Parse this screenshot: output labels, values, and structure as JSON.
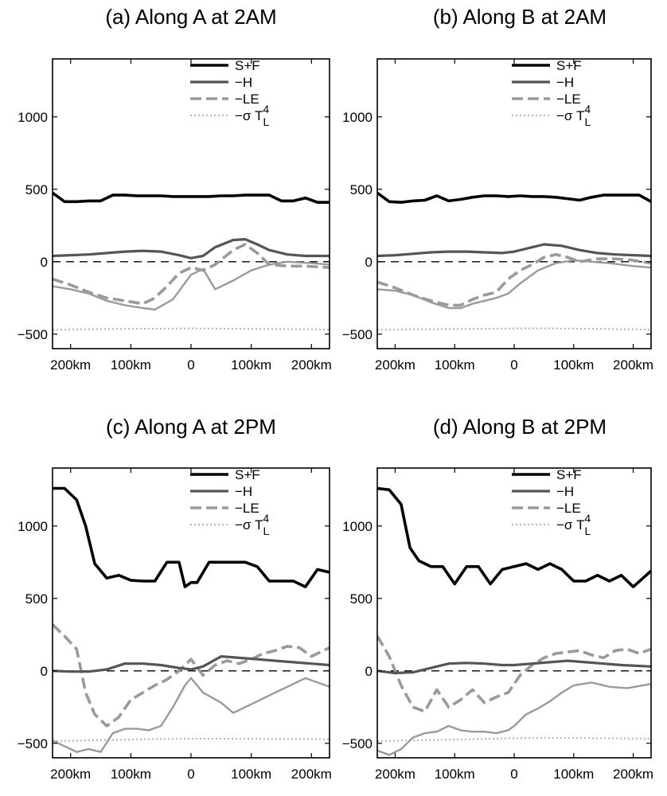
{
  "colors": {
    "s_plus_f": "#000000",
    "h": "#555555",
    "le": "#9a9a9a",
    "sigma": "#b4b4b4",
    "zero_line": "#000000"
  },
  "chart_data": [
    {
      "type": "line",
      "title": "(a) Along A   at 2AM",
      "xlim": [
        -230,
        230
      ],
      "ylim": [
        -600,
        1400
      ],
      "xticks": [
        -200,
        -100,
        0,
        100,
        200
      ],
      "xtick_labels": [
        "200km",
        "100km",
        "0",
        "100km",
        "200km"
      ],
      "yticks": [
        -500,
        0,
        500,
        1000
      ],
      "ytick_labels": [
        "−500",
        "0",
        "500",
        "1000"
      ],
      "legend": {
        "position": "top-right",
        "entries": [
          "S+F",
          "−H",
          "−LE",
          "−σ T_L^4"
        ]
      },
      "zero_line": true,
      "series": [
        {
          "name": "S+F",
          "style": "solid-thick",
          "x": [
            -230,
            -210,
            -190,
            -170,
            -150,
            -130,
            -110,
            -90,
            -70,
            -50,
            -30,
            -10,
            10,
            30,
            50,
            70,
            90,
            110,
            130,
            150,
            170,
            190,
            210,
            230
          ],
          "y": [
            475,
            415,
            415,
            420,
            420,
            460,
            460,
            455,
            455,
            455,
            450,
            450,
            450,
            450,
            455,
            455,
            460,
            460,
            460,
            420,
            420,
            440,
            410,
            410
          ]
        },
        {
          "name": "−H",
          "style": "solid",
          "x": [
            -230,
            -200,
            -170,
            -140,
            -110,
            -80,
            -50,
            -20,
            0,
            20,
            40,
            70,
            90,
            110,
            130,
            160,
            190,
            230
          ],
          "y": [
            40,
            45,
            50,
            60,
            70,
            75,
            70,
            45,
            25,
            40,
            100,
            150,
            155,
            120,
            80,
            50,
            40,
            40
          ]
        },
        {
          "name": "−LE",
          "style": "dashed",
          "x": [
            -230,
            -200,
            -170,
            -140,
            -110,
            -80,
            -60,
            -40,
            -20,
            0,
            20,
            40,
            70,
            90,
            110,
            130,
            160,
            190,
            230
          ],
          "y": [
            -120,
            -160,
            -210,
            -250,
            -270,
            -290,
            -250,
            -170,
            -80,
            -40,
            -60,
            -20,
            80,
            120,
            60,
            -20,
            -30,
            -30,
            -40
          ]
        },
        {
          "name": "−σ T_L^4",
          "style": "dotted",
          "x": [
            -230,
            -150,
            -50,
            0,
            50,
            150,
            230
          ],
          "y": [
            -470,
            -465,
            -462,
            -460,
            -462,
            -465,
            -468
          ]
        },
        {
          "name": "−H-dashed-overlay",
          "style": "solid-thin",
          "x": [
            -230,
            -200,
            -170,
            -140,
            -110,
            -80,
            -60,
            -30,
            0,
            20,
            40,
            70,
            100,
            130,
            160,
            200,
            230
          ],
          "y": [
            -170,
            -190,
            -220,
            -270,
            -300,
            -320,
            -330,
            -260,
            -90,
            -50,
            -190,
            -130,
            -60,
            -20,
            0,
            -10,
            -20
          ]
        }
      ]
    },
    {
      "type": "line",
      "title": "(b) Along B  at 2AM",
      "xlim": [
        -230,
        230
      ],
      "ylim": [
        -600,
        1400
      ],
      "xticks": [
        -200,
        -100,
        0,
        100,
        200
      ],
      "xtick_labels": [
        "200km",
        "100km",
        "0",
        "100km",
        "200km"
      ],
      "yticks": [
        -500,
        0,
        500,
        1000
      ],
      "ytick_labels": [
        "−500",
        "0",
        "500",
        "1000"
      ],
      "legend": {
        "position": "top-right",
        "entries": [
          "S+F",
          "−H",
          "−LE",
          "−σ T_L^4"
        ]
      },
      "zero_line": true,
      "series": [
        {
          "name": "S+F",
          "style": "solid-thick",
          "x": [
            -230,
            -210,
            -190,
            -170,
            -150,
            -130,
            -110,
            -90,
            -70,
            -50,
            -30,
            -10,
            10,
            30,
            50,
            70,
            90,
            110,
            130,
            150,
            170,
            190,
            210,
            230
          ],
          "y": [
            475,
            415,
            410,
            420,
            425,
            455,
            420,
            430,
            445,
            455,
            455,
            450,
            455,
            450,
            450,
            445,
            435,
            425,
            445,
            460,
            460,
            460,
            460,
            415
          ]
        },
        {
          "name": "−H",
          "style": "solid",
          "x": [
            -230,
            -200,
            -170,
            -140,
            -110,
            -80,
            -50,
            -20,
            0,
            20,
            50,
            80,
            110,
            140,
            170,
            200,
            230
          ],
          "y": [
            40,
            45,
            55,
            65,
            70,
            70,
            65,
            60,
            70,
            90,
            120,
            110,
            80,
            60,
            50,
            45,
            40
          ]
        },
        {
          "name": "−LE",
          "style": "dashed",
          "x": [
            -230,
            -200,
            -170,
            -140,
            -110,
            -90,
            -70,
            -50,
            -30,
            -10,
            10,
            30,
            50,
            70,
            90,
            110,
            140,
            170,
            200,
            230
          ],
          "y": [
            -140,
            -180,
            -230,
            -270,
            -300,
            -300,
            -260,
            -230,
            -210,
            -120,
            -60,
            -20,
            30,
            50,
            30,
            0,
            20,
            20,
            10,
            -10
          ]
        },
        {
          "name": "−σ T_L^4",
          "style": "dotted",
          "x": [
            -230,
            -150,
            -50,
            0,
            50,
            150,
            230
          ],
          "y": [
            -470,
            -466,
            -463,
            -460,
            -460,
            -464,
            -468
          ]
        },
        {
          "name": "−H-dashed-overlay",
          "style": "solid-thin",
          "x": [
            -230,
            -200,
            -170,
            -140,
            -110,
            -90,
            -70,
            -50,
            -30,
            -10,
            10,
            40,
            70,
            100,
            130,
            160,
            200,
            230
          ],
          "y": [
            -190,
            -200,
            -230,
            -280,
            -320,
            -320,
            -290,
            -270,
            -250,
            -220,
            -150,
            -60,
            -10,
            10,
            0,
            -10,
            -30,
            -40
          ]
        }
      ]
    },
    {
      "type": "line",
      "title": "(c) Along A at 2PM",
      "xlim": [
        -230,
        230
      ],
      "ylim": [
        -600,
        1400
      ],
      "xticks": [
        -200,
        -100,
        0,
        100,
        200
      ],
      "xtick_labels": [
        "200km",
        "100km",
        "0",
        "100km",
        "200km"
      ],
      "yticks": [
        -500,
        0,
        500,
        1000
      ],
      "ytick_labels": [
        "−500",
        "0",
        "500",
        "1000"
      ],
      "legend": {
        "position": "top-right",
        "entries": [
          "S+F",
          "−H",
          "−LE",
          "−σ T_L^4"
        ]
      },
      "zero_line": true,
      "series": [
        {
          "name": "S+F",
          "style": "solid-thick",
          "x": [
            -230,
            -210,
            -190,
            -175,
            -160,
            -140,
            -120,
            -100,
            -80,
            -60,
            -40,
            -20,
            -10,
            0,
            10,
            30,
            50,
            70,
            90,
            110,
            130,
            150,
            170,
            190,
            210,
            230
          ],
          "y": [
            1260,
            1260,
            1180,
            1000,
            740,
            640,
            660,
            625,
            620,
            620,
            750,
            750,
            580,
            610,
            610,
            750,
            750,
            750,
            750,
            720,
            620,
            620,
            620,
            580,
            700,
            680
          ]
        },
        {
          "name": "−H",
          "style": "solid",
          "x": [
            -230,
            -200,
            -170,
            -140,
            -110,
            -80,
            -50,
            -20,
            0,
            20,
            50,
            80,
            110,
            140,
            170,
            200,
            230
          ],
          "y": [
            0,
            -5,
            -5,
            10,
            50,
            50,
            40,
            20,
            10,
            30,
            100,
            90,
            80,
            70,
            60,
            50,
            40
          ]
        },
        {
          "name": "−LE",
          "style": "dashed",
          "x": [
            -230,
            -210,
            -190,
            -175,
            -160,
            -140,
            -120,
            -100,
            -80,
            -60,
            -40,
            -20,
            0,
            20,
            40,
            60,
            80,
            100,
            120,
            140,
            160,
            180,
            200,
            230
          ],
          "y": [
            320,
            240,
            150,
            -150,
            -300,
            -380,
            -320,
            -200,
            -150,
            -100,
            -60,
            0,
            80,
            -30,
            40,
            70,
            50,
            80,
            120,
            140,
            170,
            160,
            100,
            160
          ]
        },
        {
          "name": "−σ T_L^4",
          "style": "dotted",
          "x": [
            -230,
            -150,
            -50,
            0,
            50,
            150,
            230
          ],
          "y": [
            -485,
            -478,
            -470,
            -468,
            -468,
            -470,
            -472
          ]
        },
        {
          "name": "−H-dashed-overlay",
          "style": "solid-thin",
          "x": [
            -230,
            -210,
            -190,
            -170,
            -150,
            -130,
            -110,
            -90,
            -70,
            -50,
            -30,
            -10,
            0,
            20,
            50,
            70,
            100,
            130,
            160,
            190,
            230
          ],
          "y": [
            -480,
            -520,
            -560,
            -540,
            -560,
            -430,
            -400,
            -400,
            -410,
            -380,
            -250,
            -100,
            -50,
            -150,
            -220,
            -290,
            -230,
            -170,
            -110,
            -50,
            -110
          ]
        }
      ]
    },
    {
      "type": "line",
      "title": "(d) Along B at 2PM",
      "xlim": [
        -230,
        230
      ],
      "ylim": [
        -600,
        1400
      ],
      "xticks": [
        -200,
        -100,
        0,
        100,
        200
      ],
      "xtick_labels": [
        "200km",
        "100km",
        "0",
        "100km",
        "200km"
      ],
      "yticks": [
        -500,
        0,
        500,
        1000
      ],
      "ytick_labels": [
        "−500",
        "0",
        "500",
        "1000"
      ],
      "legend": {
        "position": "top-right",
        "entries": [
          "S+F",
          "−H",
          "−LE",
          "−σ T_L^4"
        ]
      },
      "zero_line": true,
      "series": [
        {
          "name": "S+F",
          "style": "solid-thick",
          "x": [
            -230,
            -210,
            -190,
            -175,
            -160,
            -140,
            -120,
            -100,
            -80,
            -60,
            -40,
            -20,
            0,
            20,
            40,
            60,
            80,
            100,
            120,
            140,
            160,
            180,
            200,
            230
          ],
          "y": [
            1260,
            1250,
            1150,
            850,
            760,
            720,
            720,
            600,
            720,
            720,
            600,
            700,
            720,
            740,
            700,
            740,
            700,
            620,
            620,
            660,
            620,
            660,
            580,
            690
          ]
        },
        {
          "name": "−H",
          "style": "solid",
          "x": [
            -230,
            -200,
            -170,
            -140,
            -110,
            -80,
            -50,
            -20,
            0,
            30,
            60,
            90,
            120,
            150,
            180,
            230
          ],
          "y": [
            0,
            -15,
            -10,
            20,
            50,
            55,
            50,
            40,
            40,
            50,
            60,
            70,
            60,
            50,
            40,
            30
          ]
        },
        {
          "name": "−LE",
          "style": "dashed",
          "x": [
            -230,
            -210,
            -190,
            -170,
            -150,
            -130,
            -110,
            -90,
            -70,
            -50,
            -30,
            -10,
            10,
            30,
            50,
            70,
            90,
            110,
            130,
            150,
            170,
            190,
            210,
            230
          ],
          "y": [
            240,
            100,
            -100,
            -250,
            -280,
            -130,
            -250,
            -200,
            -130,
            -220,
            -180,
            -150,
            -30,
            40,
            90,
            120,
            130,
            140,
            110,
            90,
            140,
            150,
            120,
            150
          ]
        },
        {
          "name": "−σ T_L^4",
          "style": "dotted",
          "x": [
            -230,
            -150,
            -50,
            0,
            50,
            150,
            230
          ],
          "y": [
            -485,
            -478,
            -470,
            -465,
            -462,
            -465,
            -468
          ]
        },
        {
          "name": "−H-dashed-overlay",
          "style": "solid-thin",
          "x": [
            -230,
            -210,
            -190,
            -170,
            -150,
            -130,
            -110,
            -90,
            -70,
            -50,
            -30,
            -10,
            0,
            20,
            40,
            60,
            80,
            100,
            130,
            160,
            190,
            230
          ],
          "y": [
            -550,
            -580,
            -540,
            -460,
            -430,
            -420,
            -380,
            -410,
            -420,
            -420,
            -430,
            -410,
            -380,
            -300,
            -260,
            -210,
            -150,
            -100,
            -80,
            -110,
            -120,
            -90
          ]
        }
      ]
    }
  ]
}
